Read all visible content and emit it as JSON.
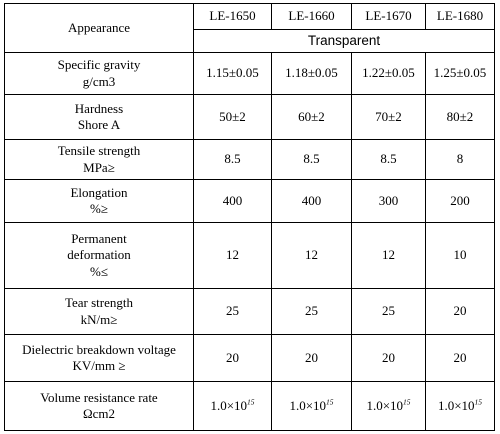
{
  "table": {
    "appearance_label": "Appearance",
    "models": [
      "LE-1650",
      "LE-1660",
      "LE-1670",
      "LE-1680"
    ],
    "appearance_value": "Transparent",
    "rows": [
      {
        "name": "Specific gravity",
        "unit": "g/cm3",
        "values": [
          "1.15±0.05",
          "1.18±0.05",
          "1.22±0.05",
          "1.25±0.05"
        ]
      },
      {
        "name": "Hardness",
        "unit": "Shore A",
        "values": [
          "50±2",
          "60±2",
          "70±2",
          "80±2"
        ]
      },
      {
        "name": "Tensile strength",
        "unit": "MPa≥",
        "values": [
          "8.5",
          "8.5",
          "8.5",
          "8"
        ]
      },
      {
        "name": "Elongation",
        "unit": "%≥",
        "values": [
          "400",
          "400",
          "300",
          "200"
        ]
      },
      {
        "name_line1": "Permanent",
        "name_line2": "deformation",
        "unit": "%≤",
        "values": [
          "12",
          "12",
          "12",
          "10"
        ]
      },
      {
        "name": "Tear strength",
        "unit": "kN/m≥",
        "values": [
          "25",
          "25",
          "25",
          "20"
        ]
      },
      {
        "name": "Dielectric breakdown voltage",
        "unit": "KV/mm ≥",
        "values": [
          "20",
          "20",
          "20",
          "20"
        ]
      },
      {
        "name": "Volume resistance rate",
        "unit": "Ωcm2",
        "values_base": [
          "1.0×10",
          "1.0×10",
          "1.0×10",
          "1.0×10"
        ],
        "values_exp": [
          "15",
          "15",
          "15",
          "15"
        ]
      }
    ]
  }
}
